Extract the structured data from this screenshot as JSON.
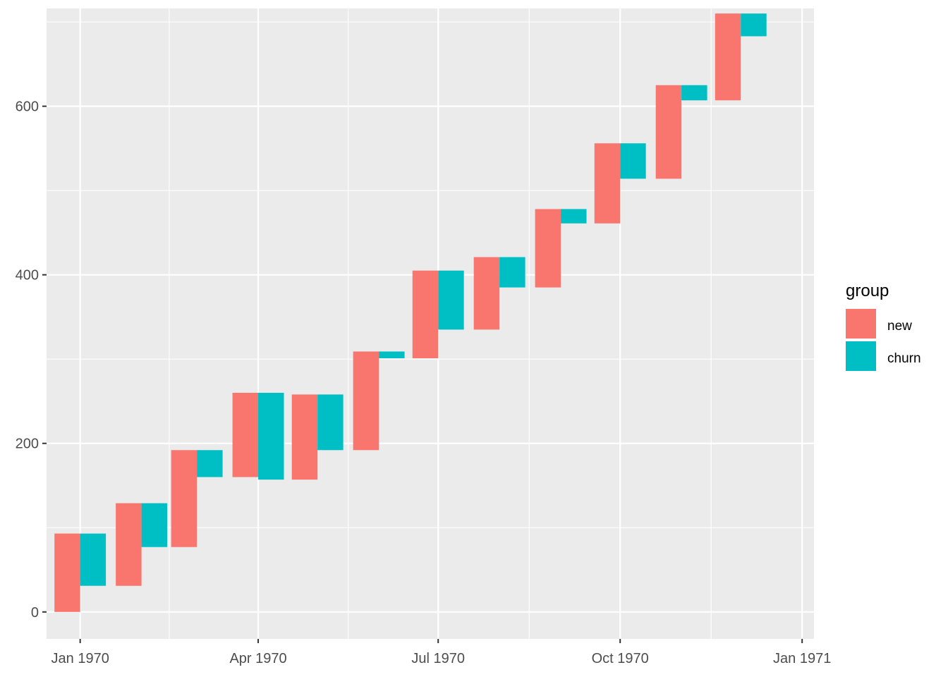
{
  "chart_data": {
    "type": "bar",
    "subtype": "waterfall",
    "title": "",
    "xlabel": "",
    "ylabel": "",
    "ylim": [
      -32,
      716
    ],
    "xlim": [
      "1969-12-15",
      "1971-01-07"
    ],
    "y_ticks": [
      0,
      200,
      400,
      600
    ],
    "x_ticks": [
      {
        "date": "1970-01-01",
        "label": "Jan 1970"
      },
      {
        "date": "1970-04-01",
        "label": "Apr 1970"
      },
      {
        "date": "1970-07-01",
        "label": "Jul 1970"
      },
      {
        "date": "1970-10-01",
        "label": "Oct 1970"
      },
      {
        "date": "1971-01-01",
        "label": "Jan 1971"
      }
    ],
    "grid": true,
    "legend": {
      "title": "group",
      "position": "right"
    },
    "series": [
      {
        "name": "new",
        "color": "#F8766D",
        "bars": [
          {
            "x_start": "1969-12-19",
            "x_end": "1970-01-01",
            "ymin": 0,
            "ymax": 93
          },
          {
            "x_start": "1970-01-19",
            "x_end": "1970-02-01",
            "ymin": 31,
            "ymax": 129
          },
          {
            "x_start": "1970-02-16",
            "x_end": "1970-03-01",
            "ymin": 77,
            "ymax": 192
          },
          {
            "x_start": "1970-03-19",
            "x_end": "1970-04-01",
            "ymin": 160,
            "ymax": 260
          },
          {
            "x_start": "1970-04-18",
            "x_end": "1970-05-01",
            "ymin": 157,
            "ymax": 258
          },
          {
            "x_start": "1970-05-19",
            "x_end": "1970-06-01",
            "ymin": 192,
            "ymax": 309
          },
          {
            "x_start": "1970-06-18",
            "x_end": "1970-07-01",
            "ymin": 301,
            "ymax": 405
          },
          {
            "x_start": "1970-07-19",
            "x_end": "1970-08-01",
            "ymin": 335,
            "ymax": 421
          },
          {
            "x_start": "1970-08-19",
            "x_end": "1970-09-01",
            "ymin": 385,
            "ymax": 478
          },
          {
            "x_start": "1970-09-18",
            "x_end": "1970-10-01",
            "ymin": 461,
            "ymax": 556
          },
          {
            "x_start": "1970-10-19",
            "x_end": "1970-11-01",
            "ymin": 514,
            "ymax": 625
          },
          {
            "x_start": "1970-11-18",
            "x_end": "1970-12-01",
            "ymin": 607,
            "ymax": 710
          }
        ]
      },
      {
        "name": "churn",
        "color": "#00BFC4",
        "bars": [
          {
            "x_start": "1970-01-01",
            "x_end": "1970-01-14",
            "ymin": 31,
            "ymax": 93
          },
          {
            "x_start": "1970-02-01",
            "x_end": "1970-02-14",
            "ymin": 77,
            "ymax": 129
          },
          {
            "x_start": "1970-03-01",
            "x_end": "1970-03-14",
            "ymin": 160,
            "ymax": 192
          },
          {
            "x_start": "1970-04-01",
            "x_end": "1970-04-14",
            "ymin": 157,
            "ymax": 260
          },
          {
            "x_start": "1970-05-01",
            "x_end": "1970-05-14",
            "ymin": 192,
            "ymax": 258
          },
          {
            "x_start": "1970-06-01",
            "x_end": "1970-06-14",
            "ymin": 301,
            "ymax": 309
          },
          {
            "x_start": "1970-07-01",
            "x_end": "1970-07-14",
            "ymin": 335,
            "ymax": 405
          },
          {
            "x_start": "1970-08-01",
            "x_end": "1970-08-14",
            "ymin": 385,
            "ymax": 421
          },
          {
            "x_start": "1970-09-01",
            "x_end": "1970-09-14",
            "ymin": 461,
            "ymax": 478
          },
          {
            "x_start": "1970-10-01",
            "x_end": "1970-10-14",
            "ymin": 514,
            "ymax": 556
          },
          {
            "x_start": "1970-11-01",
            "x_end": "1970-11-14",
            "ymin": 607,
            "ymax": 625
          },
          {
            "x_start": "1970-12-01",
            "x_end": "1970-12-14",
            "ymin": 683,
            "ymax": 710
          }
        ]
      }
    ]
  }
}
